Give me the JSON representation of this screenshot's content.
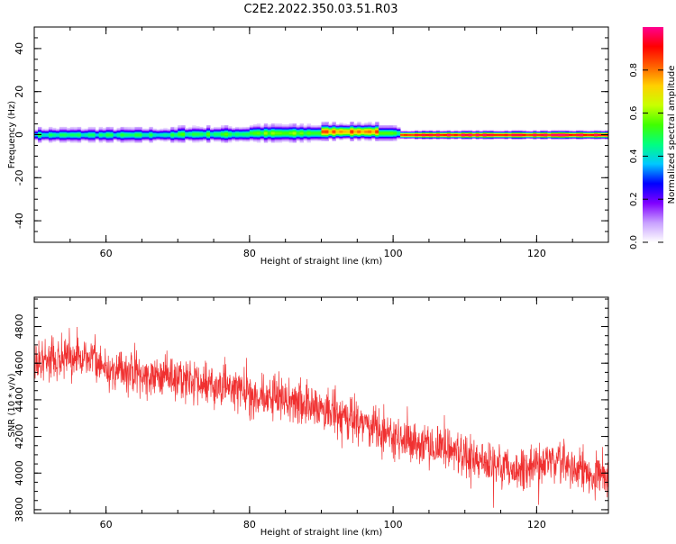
{
  "title": "C2E2.2022.350.03.51.R03",
  "chart_data": [
    {
      "type": "heatmap",
      "xlabel": "Height of straight line (km)",
      "ylabel": "Frequency (Hz)",
      "xlim": [
        50,
        130
      ],
      "ylim": [
        -50,
        50
      ],
      "x_ticks": [
        60,
        80,
        100,
        120
      ],
      "y_ticks": [
        40,
        20,
        0,
        -20,
        -40
      ],
      "colorbar": {
        "label": "Normalized spectral amplitude",
        "range": [
          0.0,
          1.0
        ],
        "ticks": [
          "0.0",
          "0.2",
          "0.4",
          "0.6",
          "0.8"
        ],
        "colormap": [
          "#ffffff",
          "#c8a0ff",
          "#8000ff",
          "#0000ff",
          "#00c8ff",
          "#00ff80",
          "#40ff00",
          "#c8ff00",
          "#ffd000",
          "#ff6000",
          "#ff0000",
          "#ff0090"
        ]
      },
      "segments": [
        {
          "x": [
            50,
            60
          ],
          "center_hz": 0.0,
          "half_width_hz": 2.5,
          "peak": 0.45
        },
        {
          "x": [
            60,
            70
          ],
          "center_hz": 0.0,
          "half_width_hz": 2.5,
          "peak": 0.45
        },
        {
          "x": [
            70,
            80
          ],
          "center_hz": 0.3,
          "half_width_hz": 2.8,
          "peak": 0.5
        },
        {
          "x": [
            80,
            90
          ],
          "center_hz": 0.8,
          "half_width_hz": 3.0,
          "peak": 0.55
        },
        {
          "x": [
            90,
            98
          ],
          "center_hz": 1.5,
          "half_width_hz": 3.0,
          "peak": 0.8
        },
        {
          "x": [
            98,
            101
          ],
          "center_hz": 0.8,
          "half_width_hz": 2.5,
          "peak": 0.5
        },
        {
          "x": [
            101,
            130
          ],
          "center_hz": 0.0,
          "half_width_hz": 1.5,
          "peak": 0.95
        }
      ]
    },
    {
      "type": "line",
      "xlabel": "Height of straight line (km)",
      "ylabel": "SNR (10 * v/v)",
      "xlim": [
        50,
        130
      ],
      "ylim": [
        3780,
        4960
      ],
      "x_ticks": [
        60,
        80,
        100,
        120
      ],
      "y_ticks": [
        3800,
        4000,
        4200,
        4400,
        4600,
        4800
      ],
      "color": "#f03030",
      "n_points": 2000,
      "trend": [
        {
          "x": 50,
          "y": 4610
        },
        {
          "x": 57,
          "y": 4640
        },
        {
          "x": 60,
          "y": 4560
        },
        {
          "x": 65,
          "y": 4530
        },
        {
          "x": 70,
          "y": 4520
        },
        {
          "x": 75,
          "y": 4480
        },
        {
          "x": 80,
          "y": 4430
        },
        {
          "x": 85,
          "y": 4400
        },
        {
          "x": 90,
          "y": 4350
        },
        {
          "x": 95,
          "y": 4290
        },
        {
          "x": 100,
          "y": 4200
        },
        {
          "x": 105,
          "y": 4150
        },
        {
          "x": 108,
          "y": 4120
        },
        {
          "x": 112,
          "y": 4070
        },
        {
          "x": 118,
          "y": 4020
        },
        {
          "x": 122,
          "y": 4060
        },
        {
          "x": 126,
          "y": 4020
        },
        {
          "x": 130,
          "y": 3990
        }
      ],
      "noise_amplitude": 85
    }
  ]
}
